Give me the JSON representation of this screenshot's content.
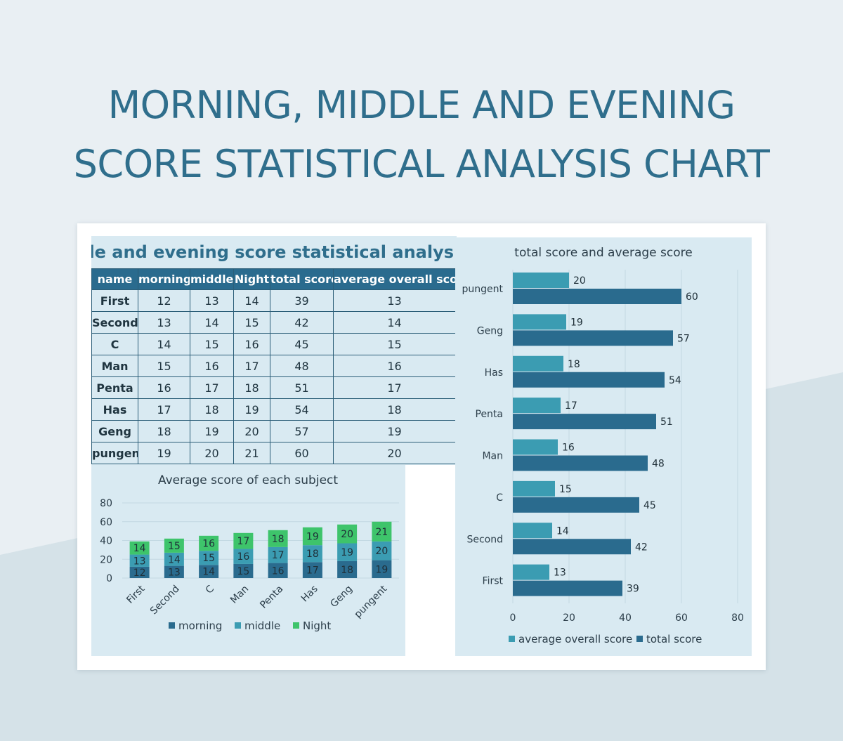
{
  "heading": {
    "line1": "MORNING, MIDDLE AND EVENING",
    "line2": "SCORE STATISTICAL ANALYSIS CHART"
  },
  "sheet_title": "g, middle and evening score statistical analys",
  "table": {
    "headers": [
      "name",
      "morning",
      "middle",
      "Night",
      "total score",
      "average overall score"
    ],
    "rows": [
      [
        "First",
        "12",
        "13",
        "14",
        "39",
        "13"
      ],
      [
        "Second",
        "13",
        "14",
        "15",
        "42",
        "14"
      ],
      [
        "C",
        "14",
        "15",
        "16",
        "45",
        "15"
      ],
      [
        "Man",
        "15",
        "16",
        "17",
        "48",
        "16"
      ],
      [
        "Penta",
        "16",
        "17",
        "18",
        "51",
        "17"
      ],
      [
        "Has",
        "17",
        "18",
        "19",
        "54",
        "18"
      ],
      [
        "Geng",
        "18",
        "19",
        "20",
        "57",
        "19"
      ],
      [
        "pungent",
        "19",
        "20",
        "21",
        "60",
        "20"
      ]
    ]
  },
  "colors": {
    "title": "#2f6e8c",
    "header_bg": "#2a6b8e",
    "chart_bg": "#d9eaf2",
    "morning": "#2a6b8e",
    "middle": "#3b9cb2",
    "night": "#3ec46b",
    "average": "#3b9cb2",
    "total": "#2a6b8e"
  },
  "chart_data": [
    {
      "type": "bar",
      "stacked": true,
      "orientation": "vertical",
      "title": "Average score of each subject",
      "categories": [
        "First",
        "Second",
        "C",
        "Man",
        "Penta",
        "Has",
        "Geng",
        "pungent"
      ],
      "series": [
        {
          "name": "morning",
          "values": [
            12,
            13,
            14,
            15,
            16,
            17,
            18,
            19
          ]
        },
        {
          "name": "middle",
          "values": [
            13,
            14,
            15,
            16,
            17,
            18,
            19,
            20
          ]
        },
        {
          "name": "Night",
          "values": [
            14,
            15,
            16,
            17,
            18,
            19,
            20,
            21
          ]
        }
      ],
      "ylim": [
        0,
        80
      ],
      "yticks": [
        0,
        20,
        40,
        60,
        80
      ],
      "legend": "bottom",
      "grid": true
    },
    {
      "type": "bar",
      "orientation": "horizontal",
      "title": "total score and average score",
      "categories": [
        "pungent",
        "Geng",
        "Has",
        "Penta",
        "Man",
        "C",
        "Second",
        "First"
      ],
      "series": [
        {
          "name": "average overall score",
          "values": [
            20,
            19,
            18,
            17,
            16,
            15,
            14,
            13
          ]
        },
        {
          "name": "total score",
          "values": [
            60,
            57,
            54,
            51,
            48,
            45,
            42,
            39
          ]
        }
      ],
      "xlim": [
        0,
        80
      ],
      "xticks": [
        0,
        20,
        40,
        60,
        80
      ],
      "legend": "bottom",
      "grid": true
    }
  ]
}
